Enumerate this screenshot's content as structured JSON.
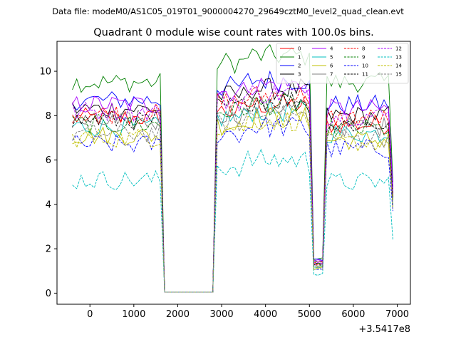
{
  "chart_data": {
    "type": "line",
    "suptitle": "Data file: modeM0/AS1C05_019T01_9000004270_29649cztM0_level2_quad_clean.evt",
    "title": "Quadrant 0 module wise count rates with 100.0s bins.",
    "xlabel": "",
    "ylabel": "",
    "offset_text": "+3.5417e8",
    "xlim": [
      -750,
      7300
    ],
    "ylim": [
      -0.5,
      11.35
    ],
    "x_ticks": [
      0,
      1000,
      2000,
      3000,
      4000,
      5000,
      6000,
      7000
    ],
    "y_ticks": [
      0,
      2,
      4,
      6,
      8,
      10
    ],
    "x_start": -400,
    "x_step": 100,
    "segments": [
      [
        -400,
        1600
      ],
      [
        1700,
        2800
      ],
      [
        2900,
        5000
      ],
      [
        5100,
        6900
      ]
    ],
    "series": [
      {
        "name": "0",
        "color": "#ff0000",
        "dash": "solid",
        "levels": [
          7.9,
          0.05,
          8.2,
          1.3,
          7.6,
          4.5
        ]
      },
      {
        "name": "1",
        "color": "#008000",
        "dash": "solid",
        "levels": [
          9.5,
          0.05,
          10.4,
          1.6,
          9.5,
          5.0
        ]
      },
      {
        "name": "2",
        "color": "#0000ff",
        "dash": "solid",
        "levels": [
          8.7,
          0.05,
          9.3,
          1.5,
          8.5,
          4.8
        ]
      },
      {
        "name": "3",
        "color": "#000000",
        "dash": "solid",
        "levels": [
          8.3,
          0.05,
          8.9,
          1.4,
          8.0,
          4.5
        ]
      },
      {
        "name": "4",
        "color": "#aa00ff",
        "dash": "solid",
        "levels": [
          8.5,
          0.05,
          9.1,
          1.45,
          8.3,
          4.7
        ]
      },
      {
        "name": "5",
        "color": "#00bfbf",
        "dash": "solid",
        "levels": [
          7.5,
          0.05,
          7.9,
          1.2,
          7.2,
          4.0
        ]
      },
      {
        "name": "6",
        "color": "#bfbf00",
        "dash": "solid",
        "levels": [
          7.1,
          0.05,
          7.6,
          1.15,
          6.9,
          3.9
        ]
      },
      {
        "name": "7",
        "color": "#808080",
        "dash": "solid",
        "levels": [
          7.7,
          0.05,
          8.1,
          1.25,
          7.5,
          4.2
        ]
      },
      {
        "name": "8",
        "color": "#ff0000",
        "dash": "dashed",
        "levels": [
          8.1,
          0.05,
          8.6,
          1.35,
          7.9,
          4.4
        ]
      },
      {
        "name": "9",
        "color": "#008000",
        "dash": "dashed",
        "levels": [
          7.6,
          0.05,
          8.2,
          1.25,
          7.4,
          4.2
        ]
      },
      {
        "name": "10",
        "color": "#0000ff",
        "dash": "dashed",
        "levels": [
          6.7,
          0.05,
          7.2,
          1.1,
          6.5,
          3.7
        ]
      },
      {
        "name": "11",
        "color": "#000000",
        "dash": "dashed",
        "levels": [
          7.8,
          0.05,
          8.4,
          1.3,
          7.6,
          4.3
        ]
      },
      {
        "name": "12",
        "color": "#aa00ff",
        "dash": "dashed",
        "levels": [
          8.2,
          0.05,
          8.7,
          1.4,
          8.0,
          4.5
        ]
      },
      {
        "name": "13",
        "color": "#00bfbf",
        "dash": "dashed",
        "levels": [
          5.1,
          0.05,
          5.7,
          0.9,
          5.0,
          2.4
        ]
      },
      {
        "name": "14",
        "color": "#bfbf00",
        "dash": "dashed",
        "levels": [
          7.0,
          0.05,
          7.5,
          1.1,
          6.8,
          3.8
        ]
      },
      {
        "name": "15",
        "color": "#808080",
        "dash": "dashed",
        "levels": [
          7.2,
          0.05,
          7.7,
          1.15,
          7.0,
          3.9
        ]
      }
    ]
  }
}
